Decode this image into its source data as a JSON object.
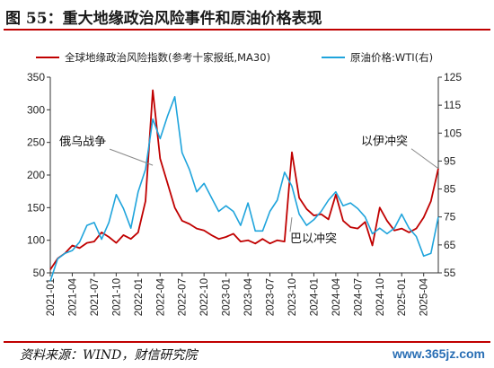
{
  "title": "图 55：重大地缘政治风险事件和原油价格表现",
  "source": "资料来源：WIND，财信研究院",
  "watermark": "www.365jz.com",
  "colors": {
    "gpr": "#c00000",
    "oil": "#1fa4dc",
    "axis": "#333333",
    "accent": "#c00000"
  },
  "chart_data": {
    "type": "line",
    "legend_placement": "top",
    "grid": false,
    "x": [
      "2021-01",
      "2021-04",
      "2021-07",
      "2021-10",
      "2022-01",
      "2022-04",
      "2022-07",
      "2022-10",
      "2023-01",
      "2023-04",
      "2023-07",
      "2023-10",
      "2024-01",
      "2024-04",
      "2024-07",
      "2024-10",
      "2025-01",
      "2025-04"
    ],
    "x_range": [
      "2021-01",
      "2025-06"
    ],
    "left_axis": {
      "ylim": [
        50,
        350
      ],
      "ticks": [
        50,
        100,
        150,
        200,
        250,
        300,
        350
      ]
    },
    "right_axis": {
      "ylim": [
        55,
        125
      ],
      "ticks": [
        55,
        65,
        75,
        85,
        95,
        105,
        115,
        125
      ]
    },
    "series": [
      {
        "name": "全球地缘政治风险指数(参考十家报纸,MA30)",
        "axis": "left",
        "color": "#c00000",
        "points": [
          [
            "2021-01",
            55
          ],
          [
            "2021-02",
            72
          ],
          [
            "2021-03",
            80
          ],
          [
            "2021-04",
            92
          ],
          [
            "2021-05",
            88
          ],
          [
            "2021-06",
            96
          ],
          [
            "2021-07",
            98
          ],
          [
            "2021-08",
            112
          ],
          [
            "2021-09",
            105
          ],
          [
            "2021-10",
            96
          ],
          [
            "2021-11",
            108
          ],
          [
            "2021-12",
            102
          ],
          [
            "2022-01",
            112
          ],
          [
            "2022-02",
            160
          ],
          [
            "2022-03",
            330
          ],
          [
            "2022-04",
            225
          ],
          [
            "2022-05",
            188
          ],
          [
            "2022-06",
            150
          ],
          [
            "2022-07",
            130
          ],
          [
            "2022-08",
            125
          ],
          [
            "2022-09",
            118
          ],
          [
            "2022-10",
            115
          ],
          [
            "2022-11",
            108
          ],
          [
            "2022-12",
            102
          ],
          [
            "2023-01",
            105
          ],
          [
            "2023-02",
            110
          ],
          [
            "2023-03",
            98
          ],
          [
            "2023-04",
            100
          ],
          [
            "2023-05",
            95
          ],
          [
            "2023-06",
            102
          ],
          [
            "2023-07",
            95
          ],
          [
            "2023-08",
            100
          ],
          [
            "2023-09",
            98
          ],
          [
            "2023-10",
            235
          ],
          [
            "2023-11",
            165
          ],
          [
            "2023-12",
            148
          ],
          [
            "2024-01",
            138
          ],
          [
            "2024-02",
            140
          ],
          [
            "2024-03",
            132
          ],
          [
            "2024-04",
            170
          ],
          [
            "2024-05",
            130
          ],
          [
            "2024-06",
            120
          ],
          [
            "2024-07",
            118
          ],
          [
            "2024-08",
            128
          ],
          [
            "2024-09",
            92
          ],
          [
            "2024-10",
            150
          ],
          [
            "2024-11",
            130
          ],
          [
            "2024-12",
            115
          ],
          [
            "2025-01",
            118
          ],
          [
            "2025-02",
            112
          ],
          [
            "2025-03",
            118
          ],
          [
            "2025-04",
            135
          ],
          [
            "2025-05",
            160
          ],
          [
            "2025-06",
            210
          ]
        ]
      },
      {
        "name": "原油价格:WTI(右)",
        "axis": "right",
        "color": "#1fa4dc",
        "points": [
          [
            "2021-01",
            52
          ],
          [
            "2021-02",
            60
          ],
          [
            "2021-03",
            62
          ],
          [
            "2021-04",
            63
          ],
          [
            "2021-05",
            66
          ],
          [
            "2021-06",
            72
          ],
          [
            "2021-07",
            73
          ],
          [
            "2021-08",
            67
          ],
          [
            "2021-09",
            73
          ],
          [
            "2021-10",
            83
          ],
          [
            "2021-11",
            78
          ],
          [
            "2021-12",
            71
          ],
          [
            "2022-01",
            84
          ],
          [
            "2022-02",
            92
          ],
          [
            "2022-03",
            110
          ],
          [
            "2022-04",
            103
          ],
          [
            "2022-05",
            111
          ],
          [
            "2022-06",
            118
          ],
          [
            "2022-07",
            98
          ],
          [
            "2022-08",
            92
          ],
          [
            "2022-09",
            84
          ],
          [
            "2022-10",
            87
          ],
          [
            "2022-11",
            82
          ],
          [
            "2022-12",
            77
          ],
          [
            "2023-01",
            79
          ],
          [
            "2023-02",
            77
          ],
          [
            "2023-03",
            72
          ],
          [
            "2023-04",
            80
          ],
          [
            "2023-05",
            70
          ],
          [
            "2023-06",
            70
          ],
          [
            "2023-07",
            77
          ],
          [
            "2023-08",
            81
          ],
          [
            "2023-09",
            91
          ],
          [
            "2023-10",
            86
          ],
          [
            "2023-11",
            76
          ],
          [
            "2023-12",
            72
          ],
          [
            "2024-01",
            74
          ],
          [
            "2024-02",
            77
          ],
          [
            "2024-03",
            81
          ],
          [
            "2024-04",
            84
          ],
          [
            "2024-05",
            79
          ],
          [
            "2024-06",
            80
          ],
          [
            "2024-07",
            78
          ],
          [
            "2024-08",
            75
          ],
          [
            "2024-09",
            69
          ],
          [
            "2024-10",
            71
          ],
          [
            "2024-11",
            69
          ],
          [
            "2024-12",
            71
          ],
          [
            "2025-01",
            76
          ],
          [
            "2025-02",
            71
          ],
          [
            "2025-03",
            68
          ],
          [
            "2025-04",
            61
          ],
          [
            "2025-05",
            62
          ],
          [
            "2025-06",
            75
          ]
        ]
      }
    ],
    "annotations": [
      {
        "text": "俄乌战争",
        "at": [
          "2022-03",
          215
        ]
      },
      {
        "text": "巴以冲突",
        "at": [
          "2023-10",
          135
        ]
      },
      {
        "text": "以伊冲突",
        "at": [
          "2025-06",
          210
        ]
      }
    ]
  }
}
